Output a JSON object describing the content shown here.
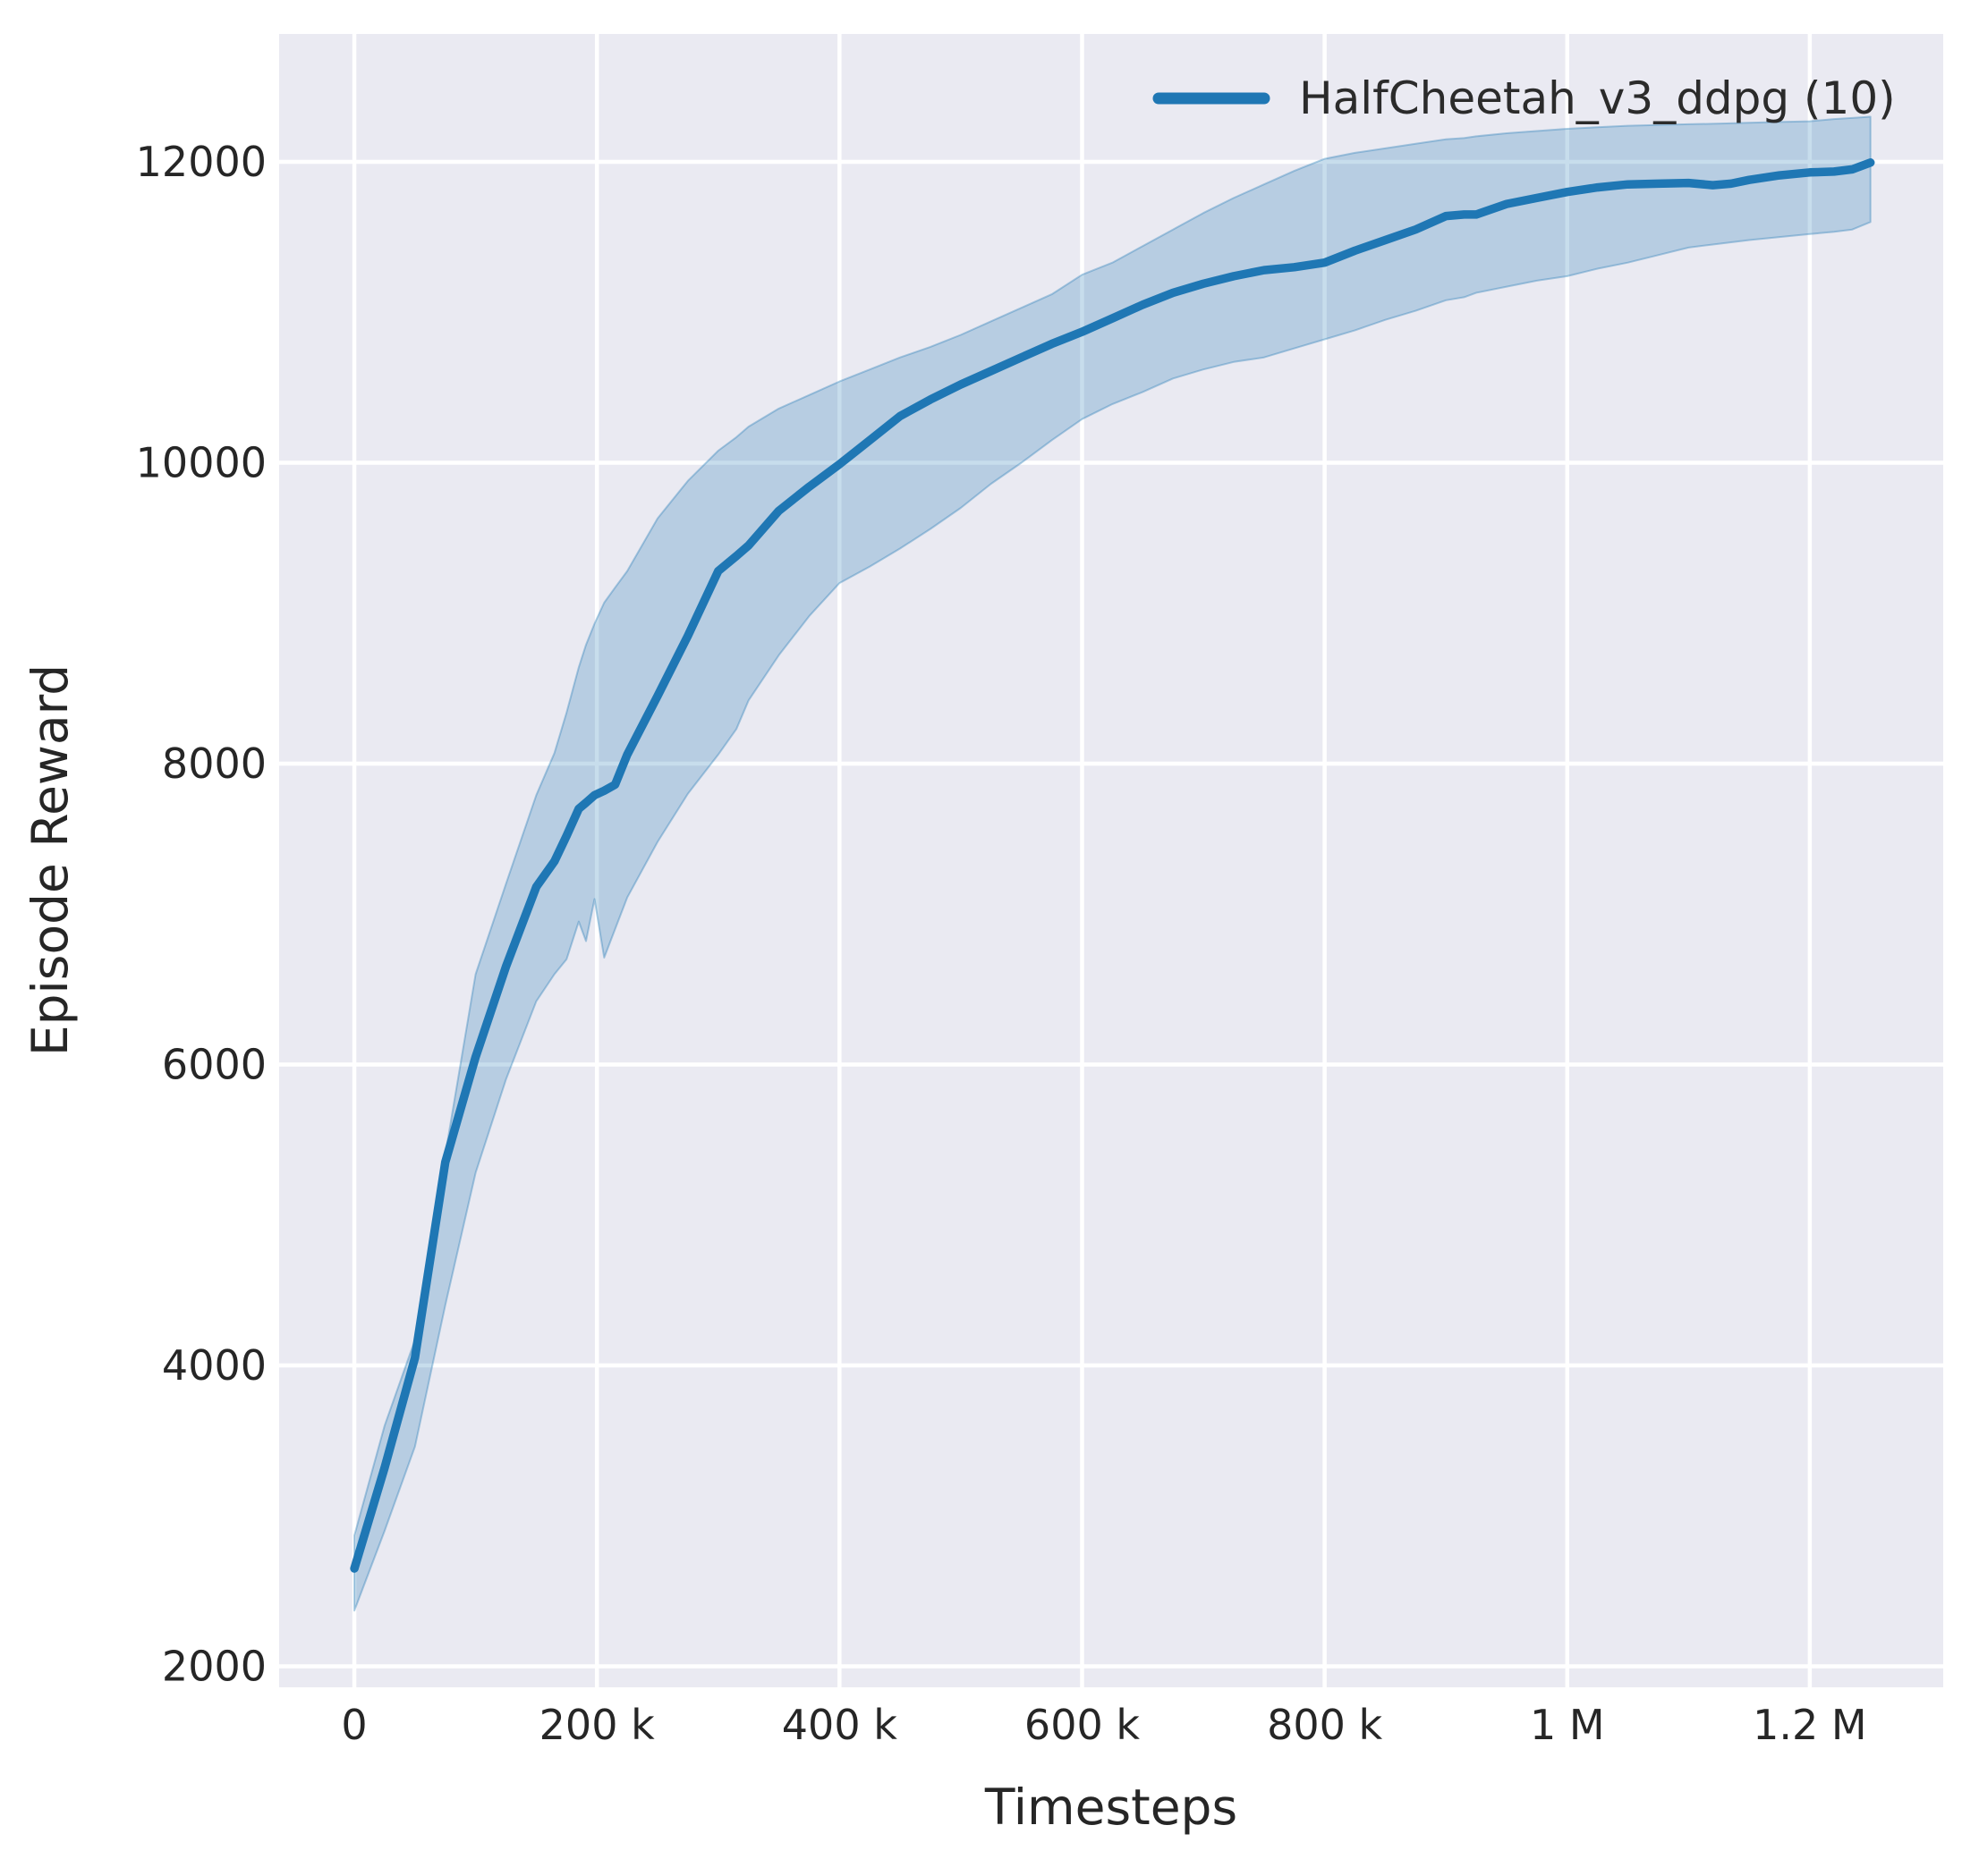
{
  "chart_data": {
    "type": "line",
    "title": "",
    "xlabel": "Timesteps",
    "ylabel": "Episode Reward",
    "grid": true,
    "legend_position": "upper right",
    "xlim": [
      -62000,
      1310000
    ],
    "ylim": [
      1860,
      12850
    ],
    "xticks": {
      "values": [
        0,
        200000,
        400000,
        600000,
        800000,
        1000000,
        1200000
      ],
      "labels": [
        "0",
        "200 k",
        "400 k",
        "600 k",
        "800 k",
        "1 M",
        "1.2 M"
      ]
    },
    "yticks": {
      "values": [
        2000,
        4000,
        6000,
        8000,
        10000,
        12000
      ],
      "labels": [
        "2000",
        "4000",
        "6000",
        "8000",
        "10000",
        "12000"
      ]
    },
    "style": {
      "panel_background": "#eaeaf2",
      "gridline_color": "#ffffff",
      "text_color": "#262626"
    },
    "series": [
      {
        "name": "HalfCheetah_v3_ddpg (10)",
        "color": "#1f77b4",
        "band_fill": "rgba(31,119,180,0.25)",
        "band_edge": "rgba(31,119,180,0.35)",
        "x": [
          0,
          25000,
          50000,
          75000,
          100000,
          125000,
          150000,
          165000,
          175000,
          185000,
          191000,
          198000,
          206000,
          215000,
          225000,
          250000,
          275000,
          300000,
          315000,
          325000,
          350000,
          375000,
          400000,
          425000,
          450000,
          475000,
          500000,
          525000,
          550000,
          575000,
          600000,
          625000,
          650000,
          675000,
          700000,
          725000,
          750000,
          775000,
          800000,
          825000,
          850000,
          875000,
          900000,
          915000,
          925000,
          950000,
          975000,
          1000000,
          1025000,
          1050000,
          1075000,
          1100000,
          1120000,
          1135000,
          1150000,
          1175000,
          1200000,
          1220000,
          1235000,
          1250000
        ],
        "mean": [
          2650,
          3320,
          4050,
          5350,
          6050,
          6650,
          7180,
          7350,
          7520,
          7700,
          7740,
          7790,
          7820,
          7860,
          8060,
          8450,
          8850,
          9280,
          9380,
          9450,
          9680,
          9840,
          9990,
          10150,
          10310,
          10420,
          10520,
          10610,
          10700,
          10790,
          10870,
          10960,
          11050,
          11130,
          11190,
          11240,
          11280,
          11300,
          11330,
          11410,
          11480,
          11550,
          11640,
          11650,
          11650,
          11720,
          11760,
          11800,
          11830,
          11850,
          11855,
          11860,
          11845,
          11855,
          11880,
          11910,
          11930,
          11935,
          11950,
          11995
        ],
        "lo": [
          2370,
          2900,
          3460,
          4400,
          5280,
          5900,
          6420,
          6600,
          6700,
          6950,
          6820,
          7100,
          6710,
          6900,
          7110,
          7480,
          7800,
          8060,
          8230,
          8420,
          8720,
          8980,
          9200,
          9310,
          9430,
          9560,
          9700,
          9860,
          10000,
          10150,
          10290,
          10390,
          10470,
          10560,
          10620,
          10670,
          10700,
          10760,
          10820,
          10880,
          10950,
          11010,
          11080,
          11100,
          11130,
          11170,
          11210,
          11240,
          11290,
          11330,
          11380,
          11430,
          11450,
          11465,
          11480,
          11500,
          11520,
          11535,
          11550,
          11600
        ],
        "hi": [
          2870,
          3600,
          4170,
          5400,
          6600,
          7200,
          7790,
          8070,
          8340,
          8640,
          8790,
          8930,
          9070,
          9170,
          9280,
          9630,
          9880,
          10080,
          10170,
          10240,
          10360,
          10450,
          10540,
          10620,
          10700,
          10770,
          10850,
          10940,
          11030,
          11120,
          11250,
          11330,
          11440,
          11550,
          11660,
          11760,
          11850,
          11940,
          12020,
          12060,
          12090,
          12120,
          12150,
          12158,
          12170,
          12190,
          12205,
          12220,
          12230,
          12240,
          12245,
          12250,
          12253,
          12256,
          12260,
          12265,
          12270,
          12285,
          12292,
          12300
        ]
      }
    ]
  }
}
